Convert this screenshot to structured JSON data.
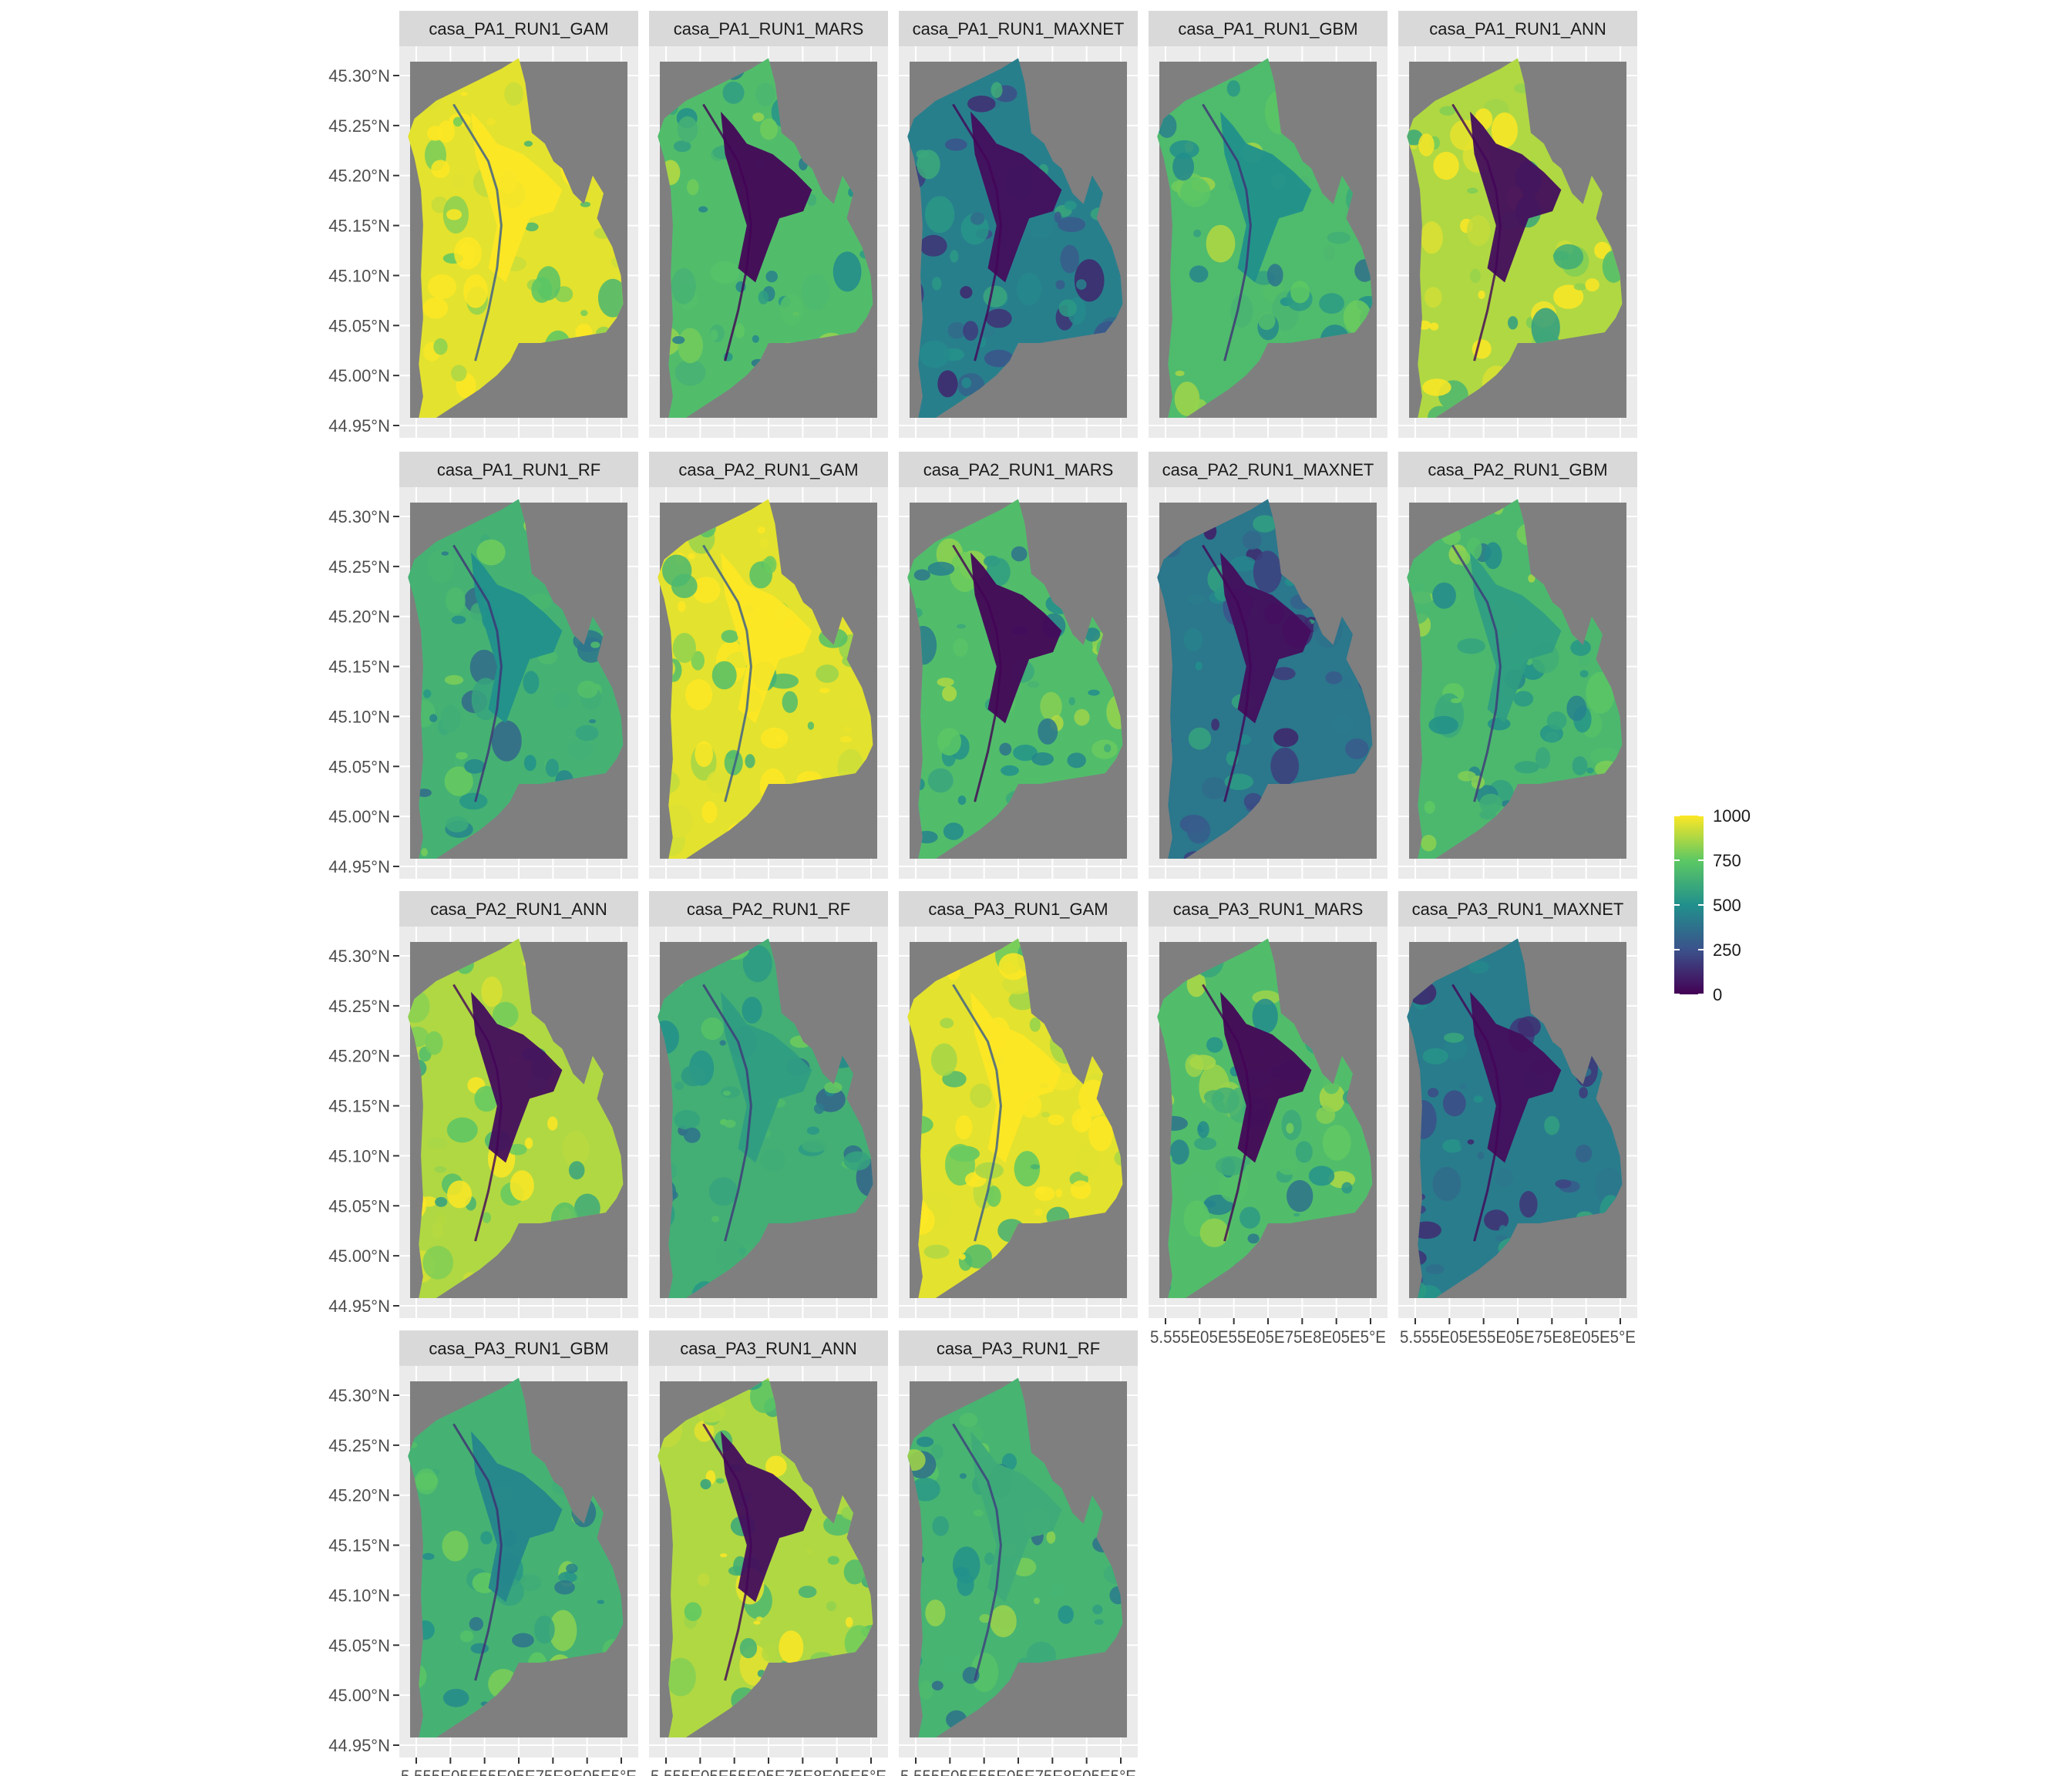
{
  "chart_data": {
    "type": "heatmap",
    "title": "",
    "facets": [
      "casa_PA1_RUN1_GAM",
      "casa_PA1_RUN1_MARS",
      "casa_PA1_RUN1_MAXNET",
      "casa_PA1_RUN1_GBM",
      "casa_PA1_RUN1_ANN",
      "casa_PA1_RUN1_RF",
      "casa_PA2_RUN1_GAM",
      "casa_PA2_RUN1_MARS",
      "casa_PA2_RUN1_MAXNET",
      "casa_PA2_RUN1_GBM",
      "casa_PA2_RUN1_ANN",
      "casa_PA2_RUN1_RF",
      "casa_PA3_RUN1_GAM",
      "casa_PA3_RUN1_MARS",
      "casa_PA3_RUN1_MAXNET",
      "casa_PA3_RUN1_GBM",
      "casa_PA3_RUN1_ANN",
      "casa_PA3_RUN1_RF"
    ],
    "facet_mean_value": [
      960,
      700,
      430,
      690,
      880,
      650,
      960,
      700,
      400,
      680,
      880,
      640,
      960,
      700,
      420,
      650,
      880,
      660
    ],
    "facet_urban_value": [
      1000,
      20,
      40,
      500,
      40,
      500,
      1000,
      20,
      40,
      560,
      40,
      560,
      1000,
      20,
      40,
      460,
      40,
      620
    ],
    "y_ticks": [
      "45.30°N",
      "45.25°N",
      "45.20°N",
      "45.15°N",
      "45.10°N",
      "45.05°N",
      "45.00°N",
      "44.95°N"
    ],
    "x_ticks": [
      "5.55°E",
      "5.60°E",
      "5.65°E",
      "5.70°E",
      "5.75°E",
      "5.80°E",
      "5.85°E"
    ],
    "x_axis_rendered": "5.555E05E55E05E75E8E05E5°E",
    "legend": {
      "ticks": [
        "1000",
        "750",
        "500",
        "250",
        "0"
      ],
      "min": 0,
      "max": 1000,
      "palette": "viridis",
      "colors": [
        "#440154",
        "#3b528b",
        "#21908c",
        "#5dc863",
        "#fde725"
      ]
    },
    "colors": {
      "panel_background": "#7f7f7f",
      "strip_background": "#d9d9d9",
      "plot_background": "#ebebeb",
      "grid": "#ffffff"
    }
  }
}
